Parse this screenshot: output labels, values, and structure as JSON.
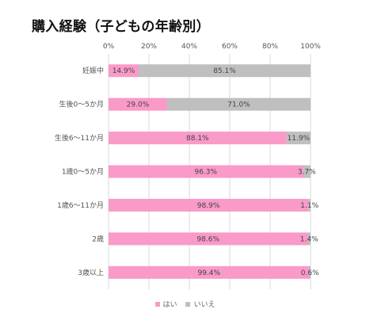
{
  "chart_data": {
    "type": "bar",
    "orientation": "horizontal",
    "stacked": true,
    "title": "購入経験（子どもの年齢別）",
    "categories": [
      "妊娠中",
      "生後0～5か月",
      "生後6～11か月",
      "1歳0～5か月",
      "1歳6～11か月",
      "2歳",
      "3歳以上"
    ],
    "series": [
      {
        "name": "はい",
        "color": "#f99ac8",
        "values": [
          14.9,
          29.0,
          88.1,
          96.3,
          98.9,
          98.6,
          99.4
        ],
        "labels": [
          "14.9%",
          "29.0%",
          "88.1%",
          "96.3%",
          "98.9%",
          "98.6%",
          "99.4%"
        ]
      },
      {
        "name": "いいえ",
        "color": "#bfbfbf",
        "values": [
          85.1,
          71.0,
          11.9,
          3.7,
          1.1,
          1.4,
          0.6
        ],
        "labels": [
          "85.1%",
          "71.0%",
          "11.9%",
          "3.7%",
          "1.1%",
          "1.4%",
          "0.6%"
        ]
      }
    ],
    "xlim": [
      0,
      100
    ],
    "xticks": [
      0,
      20,
      40,
      60,
      80,
      100
    ],
    "xtick_labels": [
      "0%",
      "20%",
      "40%",
      "60%",
      "80%",
      "100%"
    ],
    "grid": true,
    "legend_position": "bottom"
  }
}
